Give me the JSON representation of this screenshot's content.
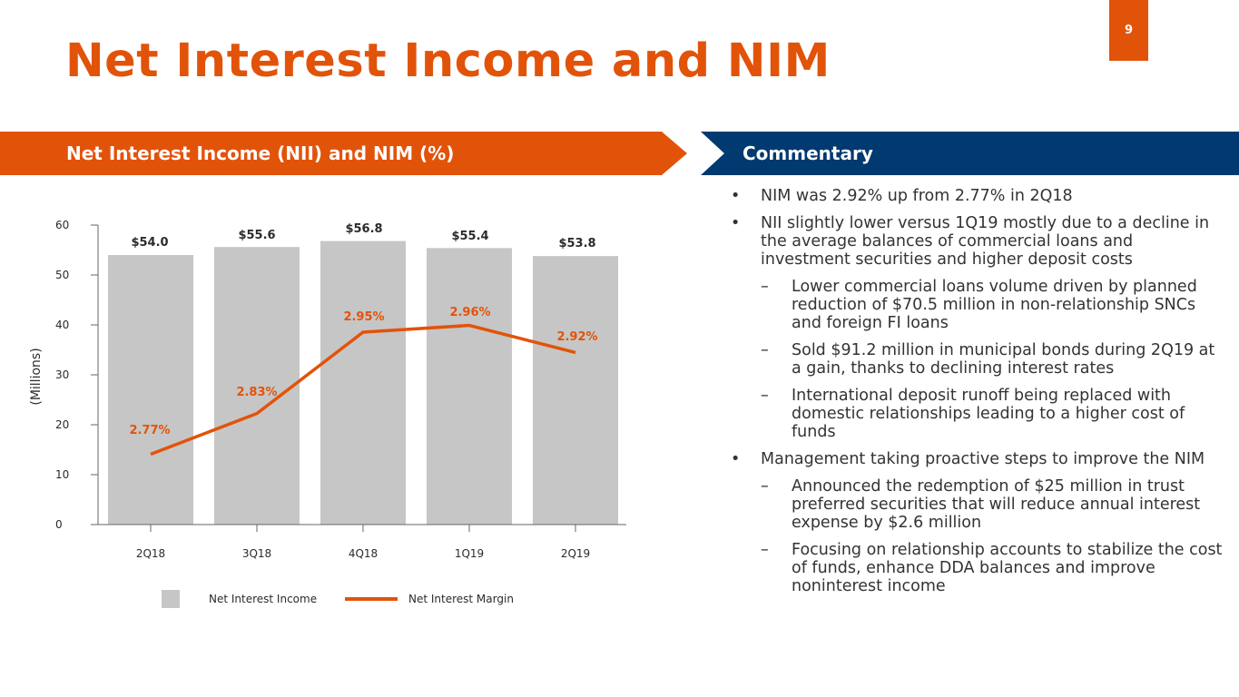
{
  "page_number": "9",
  "title": "Net Interest Income and NIM",
  "left_header": "Net Interest Income (NII) and NIM (%)",
  "right_header": "Commentary",
  "colors": {
    "accent": "#e2530a",
    "navy": "#003a70",
    "bar": "#c6c6c6"
  },
  "chart_data": {
    "type": "bar",
    "categories": [
      "2Q18",
      "3Q18",
      "4Q18",
      "1Q19",
      "2Q19"
    ],
    "series": [
      {
        "name": "Net Interest Income",
        "type": "bar",
        "values": [
          54.0,
          55.6,
          56.8,
          55.4,
          53.8
        ],
        "labels": [
          "$54.0",
          "$55.6",
          "$56.8",
          "$55.4",
          "$53.8"
        ]
      },
      {
        "name": "Net Interest Margin",
        "type": "line",
        "unit": "%",
        "values": [
          2.77,
          2.83,
          2.95,
          2.96,
          2.92
        ],
        "labels": [
          "2.77%",
          "2.83%",
          "2.95%",
          "2.96%",
          "2.92%"
        ]
      }
    ],
    "ylabel": "(Millions)",
    "ylim": [
      0,
      60
    ],
    "yticks": [
      0,
      10,
      20,
      30,
      40,
      50,
      60
    ],
    "nim_ylim": [
      2.7,
      3.0
    ],
    "legend": "bottom"
  },
  "legend": {
    "bar_label": "Net Interest Income",
    "line_label": "Net Interest Margin"
  },
  "commentary": {
    "bullet_mark": "•",
    "sub_mark": "–",
    "items": [
      {
        "text": "NIM was 2.92% up from 2.77% in 2Q18",
        "subs": []
      },
      {
        "text": "NII slightly lower versus 1Q19 mostly due to a decline in the average balances of commercial loans and investment securities and higher deposit costs",
        "subs": [
          "Lower commercial loans volume driven by planned reduction of $70.5 million in non-relationship SNCs and foreign FI loans",
          "Sold $91.2 million in municipal bonds during 2Q19 at a gain, thanks to declining interest rates",
          "International deposit runoff being replaced with domestic relationships leading to a higher cost of funds"
        ]
      },
      {
        "text": "Management taking proactive steps to improve the NIM",
        "subs": [
          "Announced the redemption of $25 million in trust preferred securities that will reduce annual interest expense by $2.6 million",
          "Focusing on relationship accounts to stabilize the cost of funds, enhance DDA balances and improve noninterest income"
        ]
      }
    ]
  }
}
